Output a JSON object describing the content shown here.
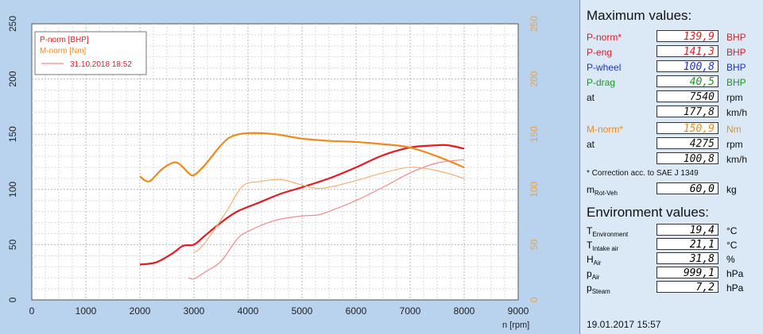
{
  "chart_data": {
    "type": "line",
    "xlabel": "n [rpm]",
    "xlim": [
      0,
      9000
    ],
    "x_ticks": [
      "0",
      "1000",
      "2000",
      "3000",
      "4000",
      "5000",
      "6000",
      "7000",
      "8000",
      "9000"
    ],
    "ylim": [
      0,
      250
    ],
    "y_ticks": [
      "0",
      "50",
      "100",
      "150",
      "200",
      "250"
    ],
    "y2_ticks": [
      "0",
      "50",
      "100",
      "150",
      "200",
      "250"
    ],
    "legend": {
      "placement": "top-left",
      "entries": [
        "P-norm [BHP]",
        "M-norm [Nm]",
        "31.10.2018 18:52"
      ]
    },
    "grid": true,
    "series": [
      {
        "name": "P-norm [BHP]",
        "color": "#e31b23",
        "width": 2.2,
        "x": [
          2000,
          2300,
          2600,
          2800,
          3000,
          3200,
          3500,
          3800,
          4200,
          4600,
          5000,
          5500,
          6000,
          6500,
          7000,
          7500,
          7700,
          8000
        ],
        "y": [
          32,
          34,
          42,
          49,
          50,
          58,
          70,
          80,
          88,
          96,
          102,
          110,
          120,
          131,
          138,
          140,
          140,
          137
        ]
      },
      {
        "name": "M-norm [Nm]",
        "color": "#ef8a1a",
        "width": 2.2,
        "x": [
          2000,
          2100,
          2200,
          2400,
          2600,
          2700,
          2800,
          2900,
          3000,
          3200,
          3500,
          3700,
          4000,
          4500,
          5000,
          5500,
          6000,
          6500,
          7000,
          7500,
          8000
        ],
        "y": [
          112,
          108,
          108,
          118,
          124,
          124,
          120,
          115,
          113,
          122,
          140,
          148,
          151,
          150,
          146,
          144,
          143,
          141,
          138,
          130,
          120
        ]
      },
      {
        "name": "31.10.2018 18:52 P",
        "color": "#f08a8a",
        "width": 1.2,
        "x": [
          2900,
          3000,
          3200,
          3500,
          3800,
          4000,
          4500,
          5000,
          5300,
          5600,
          6000,
          6500,
          7000,
          7500,
          8000
        ],
        "y": [
          20,
          19,
          25,
          35,
          55,
          62,
          72,
          76,
          77,
          82,
          90,
          102,
          115,
          124,
          127
        ]
      },
      {
        "name": "31.10.2018 18:52 M",
        "color": "#f4b070",
        "width": 1.2,
        "x": [
          3000,
          3100,
          3300,
          3600,
          3900,
          4200,
          4600,
          5000,
          5300,
          5600,
          6000,
          6500,
          7000,
          7500,
          8000
        ],
        "y": [
          43,
          46,
          58,
          80,
          103,
          107,
          109,
          104,
          101,
          103,
          108,
          115,
          120,
          117,
          110
        ]
      }
    ]
  },
  "panel": {
    "max_title": "Maximum values:",
    "max_rows": [
      {
        "label": "P-norm*",
        "value": "139,9",
        "unit": "BHP",
        "color": "#e31b23"
      },
      {
        "label": "P-eng",
        "value": "141,3",
        "unit": "BHP",
        "color": "#e31b23"
      },
      {
        "label": "P-wheel",
        "value": "100,8",
        "unit": "BHP",
        "color": "#1a33d6"
      },
      {
        "label": "P-drag",
        "value": "40,5",
        "unit": "BHP",
        "color": "#1a9a1a"
      },
      {
        "label": "at",
        "value": "7540",
        "unit": "rpm",
        "color": "#111111"
      },
      {
        "label": "",
        "value": "177,8",
        "unit": "km/h",
        "color": "#111111"
      }
    ],
    "torque_rows": [
      {
        "label": "M-norm*",
        "value": "150,9",
        "unit": "Nm",
        "color": "#ef8a1a"
      },
      {
        "label": "at",
        "value": "4275",
        "unit": "rpm",
        "color": "#111111"
      },
      {
        "label": "",
        "value": "100,8",
        "unit": "km/h",
        "color": "#111111"
      }
    ],
    "correction_note": "* Correction acc. to SAE J 1349",
    "mrot": {
      "main": "m",
      "sub": "Rot-Veh",
      "value": "60,0",
      "unit": "kg"
    },
    "env_title": "Environment values:",
    "env_rows": [
      {
        "main": "T",
        "sub": "Environment",
        "value": "19,4",
        "unit": "°C"
      },
      {
        "main": "T",
        "sub": "Intake air",
        "value": "21,1",
        "unit": "°C"
      },
      {
        "main": "H",
        "sub": "Air",
        "value": "31,8",
        "unit": "%"
      },
      {
        "main": "p",
        "sub": "Air",
        "value": "999,1",
        "unit": "hPa"
      },
      {
        "main": "p",
        "sub": "Steam",
        "value": "7,2",
        "unit": "hPa"
      }
    ],
    "date": "19.01.2017   15:57"
  }
}
